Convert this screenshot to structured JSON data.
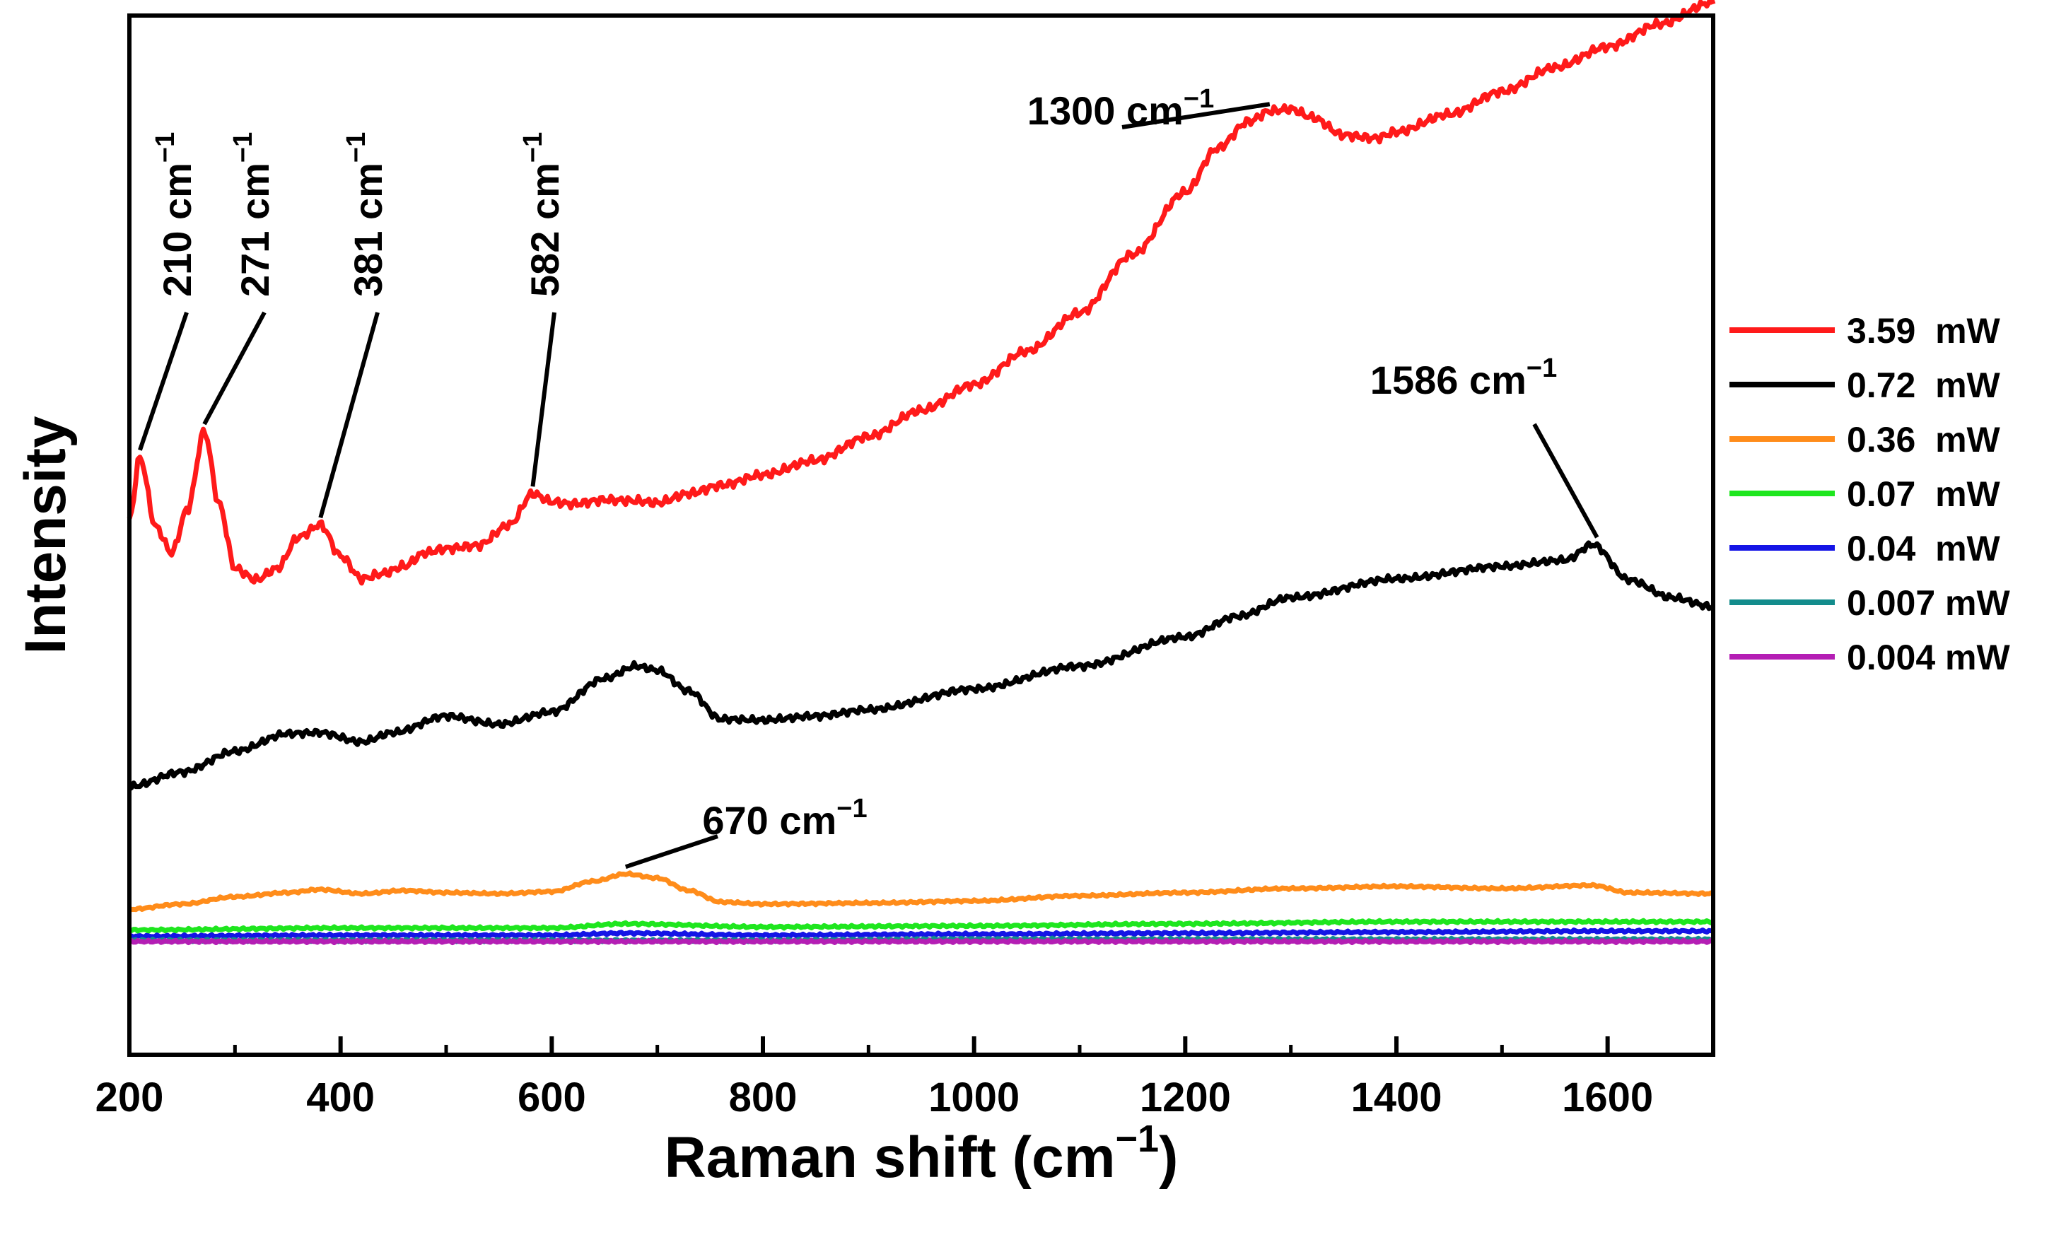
{
  "chart_data": {
    "type": "line",
    "title": "",
    "xlabel": "Raman shift (cm",
    "xlabel_sup": "−1",
    "xlabel_close": ")",
    "ylabel": "Intensity",
    "xlim": [
      200,
      1700
    ],
    "ylim": [
      0,
      100
    ],
    "xticks": [
      200,
      400,
      600,
      800,
      1000,
      1200,
      1400,
      1600
    ],
    "yticks_shown": false,
    "legend_position": "right",
    "series": [
      {
        "name": "3.59  mW",
        "color": "#ff1a1a",
        "x": [
          200,
          210,
          225,
          240,
          255,
          271,
          285,
          300,
          320,
          340,
          360,
          381,
          400,
          420,
          440,
          460,
          480,
          500,
          530,
          560,
          582,
          600,
          620,
          650,
          680,
          700,
          730,
          760,
          800,
          850,
          900,
          950,
          1000,
          1050,
          1100,
          1150,
          1200,
          1230,
          1260,
          1280,
          1300,
          1320,
          1350,
          1380,
          1400,
          1450,
          1500,
          1550,
          1600,
          1650,
          1700
        ],
        "values": [
          51.5,
          57.5,
          50.8,
          48.3,
          52.5,
          60.0,
          53.0,
          46.8,
          45.7,
          46.8,
          49.8,
          51.0,
          48.0,
          45.8,
          46.3,
          47.0,
          48.3,
          48.7,
          49.0,
          51.0,
          54.0,
          53.2,
          53.0,
          53.4,
          53.3,
          53.1,
          54.0,
          54.8,
          55.8,
          57.2,
          59.5,
          62.0,
          64.5,
          67.7,
          71.4,
          77.0,
          83.0,
          87.2,
          89.8,
          90.8,
          91.0,
          90.2,
          88.5,
          88.2,
          88.8,
          90.5,
          92.7,
          95.0,
          97.0,
          99.2,
          101.3
        ]
      },
      {
        "name": "0.72  mW",
        "color": "#000000",
        "x": [
          200,
          250,
          300,
          350,
          380,
          420,
          450,
          500,
          550,
          600,
          650,
          680,
          700,
          730,
          760,
          800,
          850,
          900,
          1000,
          1100,
          1200,
          1250,
          1300,
          1400,
          1500,
          1560,
          1586,
          1620,
          1660,
          1700
        ],
        "values": [
          25.8,
          27.2,
          29.2,
          30.9,
          31.0,
          30.1,
          31.0,
          32.6,
          31.8,
          33.0,
          36.2,
          37.4,
          37.0,
          35.0,
          32.3,
          32.2,
          32.6,
          33.2,
          35.2,
          37.4,
          40.2,
          42.2,
          44.0,
          45.8,
          47.0,
          47.6,
          49.1,
          45.7,
          44.0,
          43.1
        ]
      },
      {
        "name": "0.36  mW",
        "color": "#ff8c1a",
        "x": [
          200,
          250,
          300,
          350,
          380,
          420,
          460,
          500,
          550,
          600,
          640,
          670,
          700,
          730,
          760,
          800,
          900,
          1000,
          1100,
          1200,
          1300,
          1400,
          1500,
          1586,
          1620,
          1700
        ],
        "values": [
          14.0,
          14.5,
          15.2,
          15.6,
          15.9,
          15.5,
          15.8,
          15.6,
          15.5,
          15.7,
          16.7,
          17.4,
          17.0,
          15.8,
          14.7,
          14.5,
          14.6,
          14.8,
          15.3,
          15.6,
          16.0,
          16.2,
          16.0,
          16.3,
          15.6,
          15.5
        ]
      },
      {
        "name": "0.07  mW",
        "color": "#1ee61e",
        "x": [
          200,
          400,
          600,
          670,
          800,
          1000,
          1200,
          1400,
          1600,
          1700
        ],
        "values": [
          12.0,
          12.2,
          12.2,
          12.6,
          12.3,
          12.4,
          12.6,
          12.8,
          12.8,
          12.8
        ]
      },
      {
        "name": "0.04  mW",
        "color": "#1414e6",
        "x": [
          200,
          400,
          600,
          670,
          800,
          1000,
          1200,
          1400,
          1600,
          1700
        ],
        "values": [
          11.4,
          11.5,
          11.5,
          11.7,
          11.5,
          11.6,
          11.7,
          11.8,
          11.9,
          11.9
        ]
      },
      {
        "name": "0.007 mW",
        "color": "#138c8c",
        "x": [
          200,
          400,
          600,
          800,
          1000,
          1200,
          1400,
          1600,
          1700
        ],
        "values": [
          11.0,
          11.0,
          11.0,
          11.0,
          11.1,
          11.1,
          11.1,
          11.1,
          11.1
        ]
      },
      {
        "name": "0.004 mW",
        "color": "#b41eb4",
        "x": [
          200,
          400,
          600,
          800,
          1000,
          1200,
          1400,
          1600,
          1700
        ],
        "values": [
          10.9,
          10.9,
          10.9,
          10.9,
          10.9,
          10.9,
          10.9,
          10.9,
          10.9
        ]
      }
    ],
    "annotations": [
      {
        "label": "210 cm",
        "sup": "−1",
        "peak_x": 210,
        "peak_y": 57.5,
        "rotated": true
      },
      {
        "label": "271 cm",
        "sup": "−1",
        "peak_x": 271,
        "peak_y": 60.0,
        "rotated": true
      },
      {
        "label": "381 cm",
        "sup": "−1",
        "peak_x": 381,
        "peak_y": 51.0,
        "rotated": true
      },
      {
        "label": "582 cm",
        "sup": "−1",
        "peak_x": 582,
        "peak_y": 54.0,
        "rotated": true
      },
      {
        "label": "1300 cm",
        "sup": "−1",
        "peak_x": 1280,
        "peak_y": 90.8,
        "rotated": false
      },
      {
        "label": "1586 cm",
        "sup": "−1",
        "peak_x": 1590,
        "peak_y": 49.1,
        "rotated": false
      },
      {
        "label": "670 cm",
        "sup": "−1",
        "peak_x": 670,
        "peak_y": 17.4,
        "rotated": false
      }
    ]
  }
}
